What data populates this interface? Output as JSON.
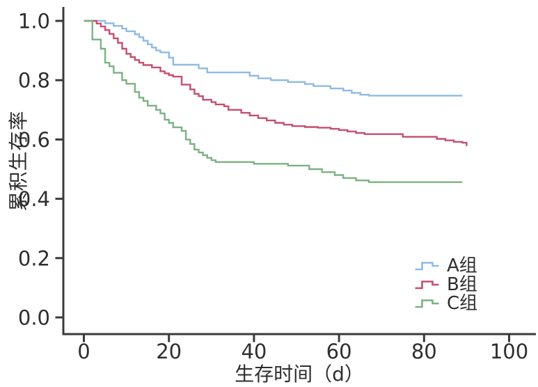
{
  "figure": {
    "kind": "kaplan-meier-survival-plot",
    "background": "#ffffff",
    "axis_color": "#3a3a3a",
    "text_color": "#2e2e2e"
  },
  "chart_data": {
    "type": "line",
    "subtype": "step-post-survival-curves",
    "title": "",
    "xlabel": "生存时间（d）",
    "ylabel": "累积生存率",
    "xlim": [
      -5,
      105
    ],
    "ylim": [
      -0.05,
      1.04
    ],
    "grid": false,
    "legend_position": "lower-right",
    "x_ticks": [
      {
        "label": "0",
        "value": 0
      },
      {
        "label": "20",
        "value": 20
      },
      {
        "label": "40",
        "value": 40
      },
      {
        "label": "60",
        "value": 60
      },
      {
        "label": "80",
        "value": 80
      },
      {
        "label": "100",
        "value": 100
      }
    ],
    "y_ticks": [
      {
        "label": "0.0",
        "value": 0.0
      },
      {
        "label": "0.2",
        "value": 0.2
      },
      {
        "label": "0.4",
        "value": 0.4
      },
      {
        "label": "0.6",
        "value": 0.6
      },
      {
        "label": "0.8",
        "value": 0.8
      },
      {
        "label": "1.0",
        "value": 1.0
      }
    ],
    "series": [
      {
        "name": "A组",
        "color": "#8fbae2",
        "points": [
          [
            0,
            1.0
          ],
          [
            5,
            0.992
          ],
          [
            7,
            0.983
          ],
          [
            9,
            0.974
          ],
          [
            10,
            0.965
          ],
          [
            12,
            0.955
          ],
          [
            13,
            0.945
          ],
          [
            14,
            0.933
          ],
          [
            15,
            0.921
          ],
          [
            16,
            0.91
          ],
          [
            17,
            0.9
          ],
          [
            18,
            0.894
          ],
          [
            20,
            0.876
          ],
          [
            21,
            0.852
          ],
          [
            27,
            0.84
          ],
          [
            29,
            0.826
          ],
          [
            39,
            0.815
          ],
          [
            41,
            0.806
          ],
          [
            44,
            0.8
          ],
          [
            48,
            0.794
          ],
          [
            52,
            0.787
          ],
          [
            54,
            0.78
          ],
          [
            58,
            0.772
          ],
          [
            61,
            0.765
          ],
          [
            63,
            0.757
          ],
          [
            65,
            0.751
          ],
          [
            67,
            0.748
          ],
          [
            89,
            0.748
          ]
        ]
      },
      {
        "name": "B组",
        "color": "#c44f6e",
        "points": [
          [
            0,
            1.0
          ],
          [
            3,
            0.991
          ],
          [
            4,
            0.981
          ],
          [
            5,
            0.969
          ],
          [
            6,
            0.956
          ],
          [
            7,
            0.941
          ],
          [
            8,
            0.926
          ],
          [
            9,
            0.906
          ],
          [
            10,
            0.889
          ],
          [
            11,
            0.878
          ],
          [
            12,
            0.868
          ],
          [
            13,
            0.859
          ],
          [
            14,
            0.851
          ],
          [
            16,
            0.843
          ],
          [
            18,
            0.83
          ],
          [
            19,
            0.823
          ],
          [
            20,
            0.817
          ],
          [
            21,
            0.812
          ],
          [
            23,
            0.785
          ],
          [
            25,
            0.769
          ],
          [
            26,
            0.754
          ],
          [
            27,
            0.746
          ],
          [
            28,
            0.734
          ],
          [
            30,
            0.726
          ],
          [
            31,
            0.718
          ],
          [
            33,
            0.712
          ],
          [
            34,
            0.7
          ],
          [
            37,
            0.69
          ],
          [
            39,
            0.681
          ],
          [
            41,
            0.672
          ],
          [
            43,
            0.664
          ],
          [
            45,
            0.656
          ],
          [
            47,
            0.65
          ],
          [
            49,
            0.645
          ],
          [
            52,
            0.642
          ],
          [
            55,
            0.64
          ],
          [
            58,
            0.636
          ],
          [
            60,
            0.632
          ],
          [
            62,
            0.627
          ],
          [
            64,
            0.622
          ],
          [
            66,
            0.618
          ],
          [
            75,
            0.609
          ],
          [
            83,
            0.602
          ],
          [
            85,
            0.597
          ],
          [
            87,
            0.592
          ],
          [
            89,
            0.589
          ],
          [
            90,
            0.578
          ]
        ]
      },
      {
        "name": "C组",
        "color": "#7db183",
        "points": [
          [
            0,
            1.0
          ],
          [
            2,
            0.937
          ],
          [
            4,
            0.906
          ],
          [
            5,
            0.859
          ],
          [
            6,
            0.847
          ],
          [
            7,
            0.825
          ],
          [
            9,
            0.8
          ],
          [
            10,
            0.788
          ],
          [
            12,
            0.76
          ],
          [
            13,
            0.741
          ],
          [
            14,
            0.73
          ],
          [
            15,
            0.714
          ],
          [
            17,
            0.7
          ],
          [
            18,
            0.688
          ],
          [
            19,
            0.667
          ],
          [
            20,
            0.656
          ],
          [
            21,
            0.641
          ],
          [
            23,
            0.629
          ],
          [
            24,
            0.6
          ],
          [
            25,
            0.585
          ],
          [
            26,
            0.566
          ],
          [
            27,
            0.556
          ],
          [
            28,
            0.547
          ],
          [
            29,
            0.538
          ],
          [
            30,
            0.53
          ],
          [
            31,
            0.524
          ],
          [
            40,
            0.518
          ],
          [
            48,
            0.512
          ],
          [
            53,
            0.5
          ],
          [
            56,
            0.49
          ],
          [
            59,
            0.48
          ],
          [
            61,
            0.47
          ],
          [
            64,
            0.462
          ],
          [
            67,
            0.456
          ],
          [
            89,
            0.456
          ]
        ]
      }
    ]
  }
}
